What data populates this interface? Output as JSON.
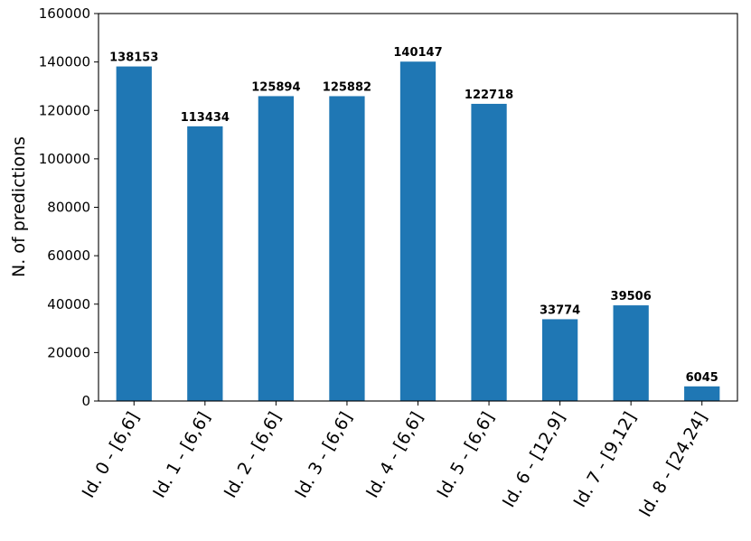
{
  "chart_data": {
    "type": "bar",
    "title": "",
    "xlabel": "",
    "ylabel": "N. of predictions",
    "categories": [
      "Id. 0 - [6,6]",
      "Id. 1 - [6,6]",
      "Id. 2 - [6,6]",
      "Id. 3 - [6,6]",
      "Id. 4 - [6,6]",
      "Id. 5 - [6,6]",
      "Id. 6 - [12,9]",
      "Id. 7 - [9,12]",
      "Id. 8 - [24,24]"
    ],
    "values": [
      138153,
      113434,
      125894,
      125882,
      140147,
      122718,
      33774,
      39506,
      6045
    ],
    "ylim": [
      0,
      160000
    ],
    "yticks": [
      0,
      20000,
      40000,
      60000,
      80000,
      100000,
      120000,
      140000,
      160000
    ],
    "grid": false,
    "bar_color": "#1f77b4"
  }
}
